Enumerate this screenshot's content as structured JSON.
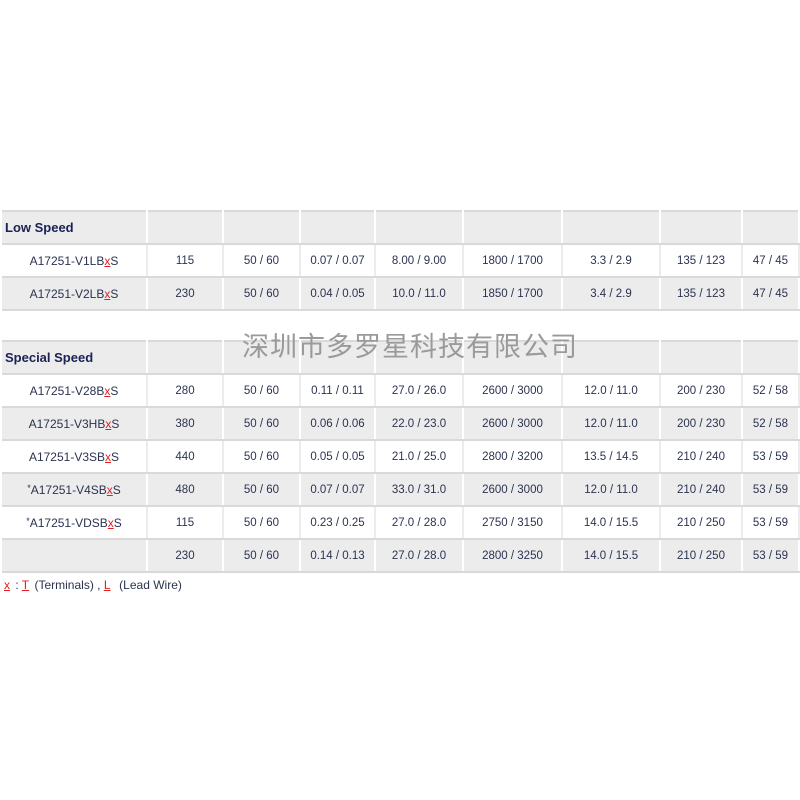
{
  "watermark": "深圳市多罗星科技有限公司",
  "sections": [
    {
      "title": "Low Speed",
      "rows": [
        {
          "star": "",
          "model_pre": "A17251-V1LB",
          "model_x": "x",
          "model_post": "S",
          "cells": [
            "115",
            "50 / 60",
            "0.07 / 0.07",
            "8.00 / 9.00",
            "1800 / 1700",
            "3.3 / 2.9",
            "135 / 123",
            "47 / 45"
          ]
        },
        {
          "star": "",
          "model_pre": "A17251-V2LB",
          "model_x": "x",
          "model_post": "S",
          "cells": [
            "230",
            "50 / 60",
            "0.04 / 0.05",
            "10.0 / 11.0",
            "1850 / 1700",
            "3.4 / 2.9",
            "135 / 123",
            "47 / 45"
          ]
        }
      ]
    },
    {
      "title": "Special Speed",
      "rows": [
        {
          "star": "",
          "model_pre": "A17251-V28B",
          "model_x": "x",
          "model_post": "S",
          "cells": [
            "280",
            "50 / 60",
            "0.11 / 0.11",
            "27.0 / 26.0",
            "2600 / 3000",
            "12.0 / 11.0",
            "200 / 230",
            "52 / 58"
          ]
        },
        {
          "star": "",
          "model_pre": "A17251-V3HB",
          "model_x": "x",
          "model_post": "S",
          "cells": [
            "380",
            "50 / 60",
            "0.06 / 0.06",
            "22.0 / 23.0",
            "2600 / 3000",
            "12.0 / 11.0",
            "200 / 230",
            "52 / 58"
          ]
        },
        {
          "star": "",
          "model_pre": "A17251-V3SB",
          "model_x": "x",
          "model_post": "S",
          "cells": [
            "440",
            "50 / 60",
            "0.05 / 0.05",
            "21.0 / 25.0",
            "2800 / 3200",
            "13.5 / 14.5",
            "210 / 240",
            "53 / 59"
          ]
        },
        {
          "star": "*",
          "model_pre": "A17251-V4SB",
          "model_x": "x",
          "model_post": "S",
          "cells": [
            "480",
            "50 / 60",
            "0.07 / 0.07",
            "33.0 / 31.0",
            "2600 / 3000",
            "12.0 / 11.0",
            "210 / 240",
            "53 / 59"
          ]
        },
        {
          "star": "*",
          "model_pre": "A17251-VDSB",
          "model_x": "x",
          "model_post": "S",
          "cells": [
            "115",
            "50 / 60",
            "0.23 / 0.25",
            "27.0 / 28.0",
            "2750 / 3150",
            "14.0 / 15.5",
            "210 / 250",
            "53 / 59"
          ]
        },
        {
          "star": "",
          "model_pre": "",
          "model_x": "",
          "model_post": "",
          "cells": [
            "230",
            "50 / 60",
            "0.14 / 0.13",
            "27.0 / 28.0",
            "2800 / 3250",
            "14.0 / 15.5",
            "210 / 250",
            "53 / 59"
          ]
        }
      ]
    }
  ],
  "footnote": {
    "x": "x",
    "sep": " : ",
    "t": "T",
    "t_label": " (Terminals) , ",
    "l": "L",
    "l_label": "  (Lead Wire)"
  }
}
